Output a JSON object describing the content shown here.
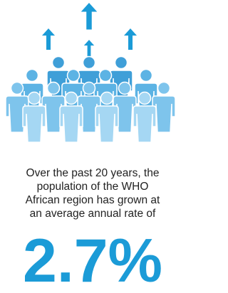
{
  "text": {
    "lines": [
      "Over the past 20 years, the",
      "population of the WHO",
      "African region has grown at",
      "an average annual rate of"
    ]
  },
  "stat": "2.7%"
}
